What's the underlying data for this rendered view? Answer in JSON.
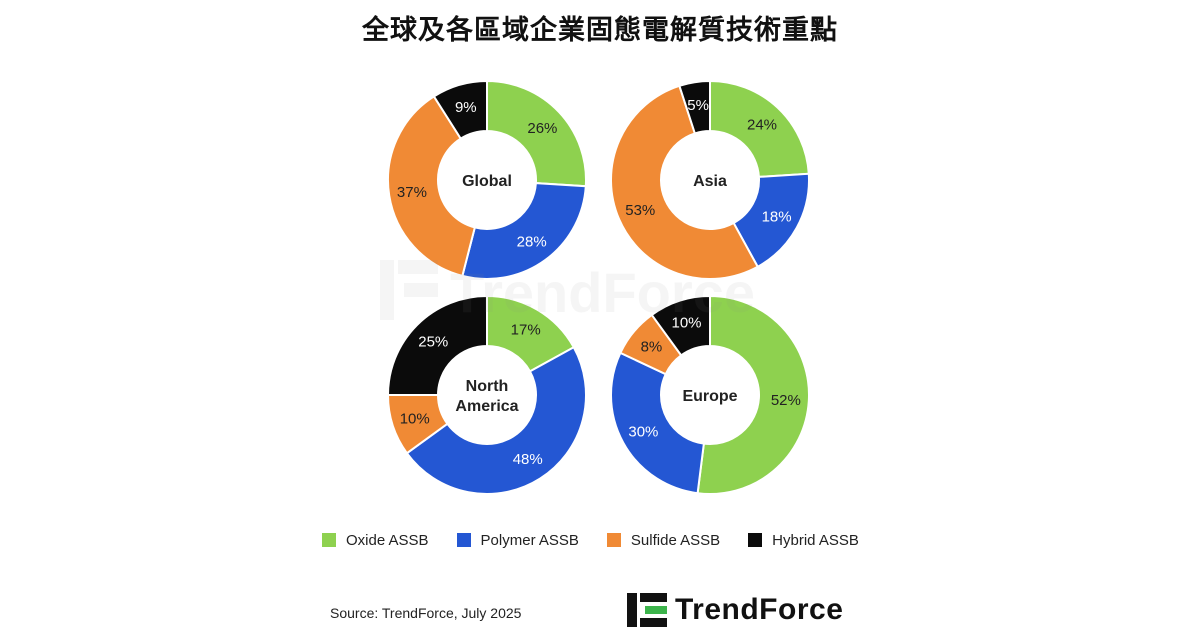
{
  "title": "全球及各區域企業固態電解質技術重點",
  "colors": {
    "oxide": "#8ed14f",
    "polymer": "#2457d3",
    "sulfide": "#f08a35",
    "hybrid": "#0b0b0b"
  },
  "chart_data": {
    "type": "pie",
    "series_names": [
      "Oxide ASSB",
      "Polymer ASSB",
      "Sulfide ASSB",
      "Hybrid ASSB"
    ],
    "charts": [
      {
        "region": "Global",
        "values": [
          26,
          28,
          37,
          9
        ]
      },
      {
        "region": "Asia",
        "values": [
          24,
          18,
          53,
          5
        ]
      },
      {
        "region": "North America",
        "values": [
          17,
          48,
          10,
          25
        ]
      },
      {
        "region": "Europe",
        "values": [
          52,
          30,
          8,
          10
        ]
      }
    ]
  },
  "legend": [
    {
      "label": "Oxide ASSB",
      "key": "oxide"
    },
    {
      "label": "Polymer ASSB",
      "key": "polymer"
    },
    {
      "label": "Sulfide ASSB",
      "key": "sulfide"
    },
    {
      "label": "Hybrid ASSB",
      "key": "hybrid"
    }
  ],
  "source": "Source: TrendForce, July 2025",
  "logo_text": "TrendForce",
  "watermark_text": "TrendForce"
}
